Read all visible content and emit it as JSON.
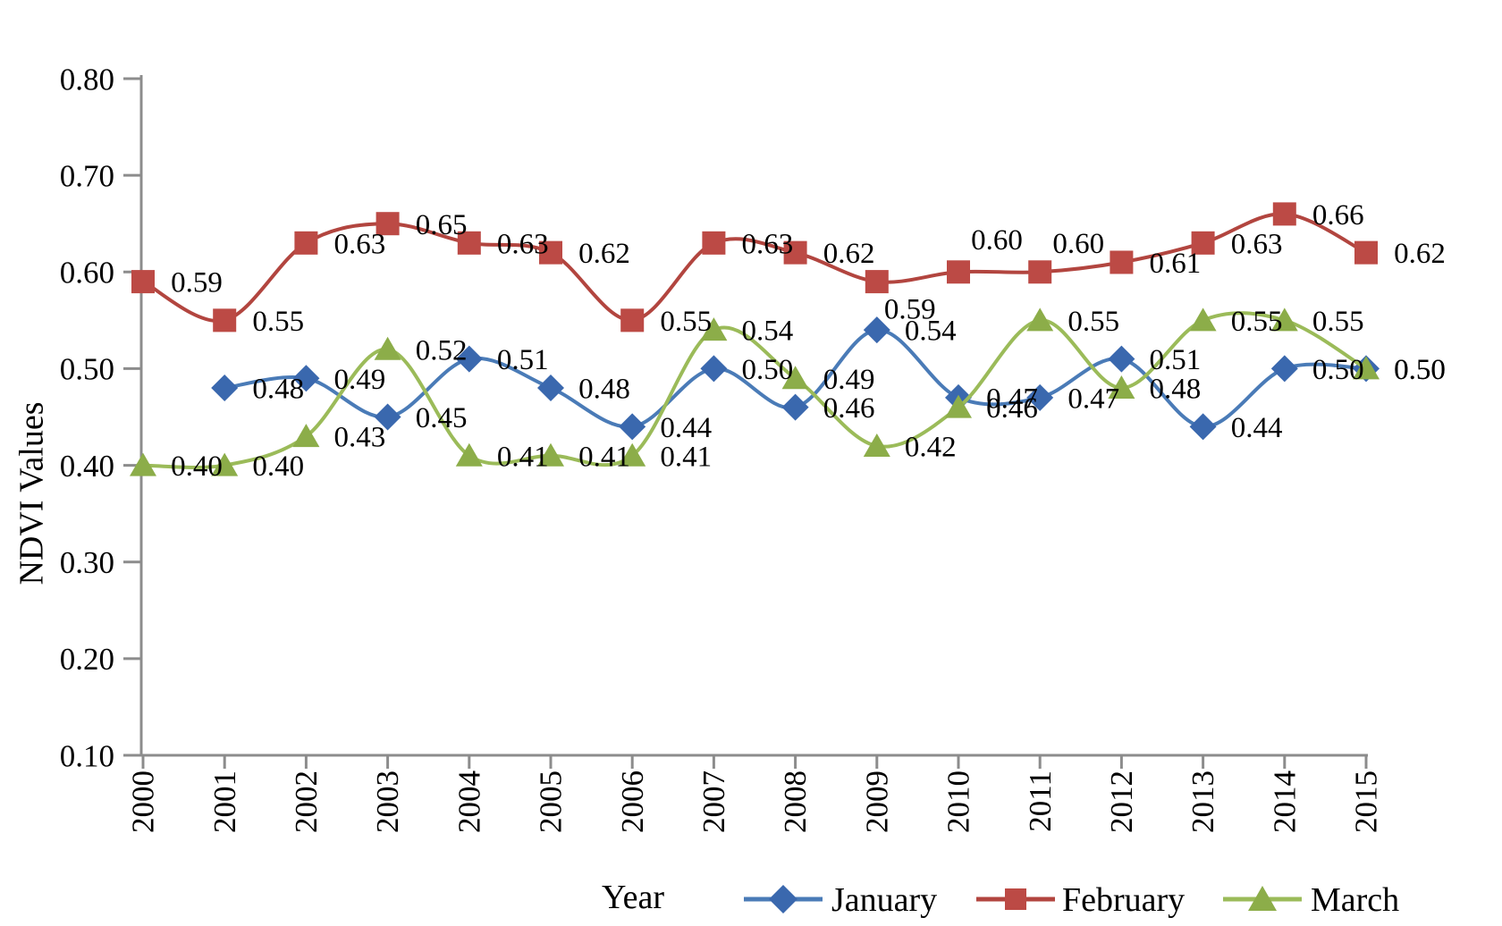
{
  "chart_data": {
    "type": "line",
    "title": "",
    "xlabel": "Year",
    "ylabel": "NDVI Values",
    "categories": [
      "2000",
      "2001",
      "2002",
      "2003",
      "2004",
      "2005",
      "2006",
      "2007",
      "2008",
      "2009",
      "2010",
      "2011",
      "2012",
      "2013",
      "2014",
      "2015"
    ],
    "series": [
      {
        "name": "January",
        "marker": "diamond",
        "marker_color": "#3A68AE",
        "line_color": "#4A7BB7",
        "values": [
          null,
          0.48,
          0.49,
          0.45,
          0.51,
          0.48,
          0.44,
          0.5,
          0.46,
          0.54,
          0.47,
          0.47,
          0.51,
          0.44,
          0.5,
          0.5
        ]
      },
      {
        "name": "February",
        "marker": "square",
        "marker_color": "#BC4A45",
        "line_color": "#B2453F",
        "values": [
          0.59,
          0.55,
          0.63,
          0.65,
          0.63,
          0.62,
          0.55,
          0.63,
          0.62,
          0.59,
          0.6,
          0.6,
          0.61,
          0.63,
          0.66,
          0.62
        ]
      },
      {
        "name": "March",
        "marker": "triangle",
        "marker_color": "#8CAD49",
        "line_color": "#9BBB59",
        "values": [
          0.4,
          0.4,
          0.43,
          0.52,
          0.41,
          0.41,
          0.41,
          0.54,
          0.49,
          0.42,
          0.46,
          0.55,
          0.48,
          0.55,
          0.55,
          0.5
        ]
      }
    ],
    "ylim": [
      0.1,
      0.8
    ],
    "ytick_labels": [
      "0.10",
      "0.20",
      "0.30",
      "0.40",
      "0.50",
      "0.60",
      "0.70",
      "0.80"
    ],
    "xtick_rotation": -90,
    "grid": false,
    "smooth_lines": true,
    "data_labels": true,
    "data_label_format": "0.00",
    "legend_position": "bottom",
    "label_offset_default": [
      60,
      0
    ],
    "label_overrides": {
      "February": {
        "9": [
          37,
          30
        ],
        "10": [
          43,
          -37
        ],
        "11": [
          43,
          -33
        ]
      }
    },
    "axis_color": "#8C8C8C",
    "text_color": "#000000",
    "background_color": "#FFFFFF"
  }
}
